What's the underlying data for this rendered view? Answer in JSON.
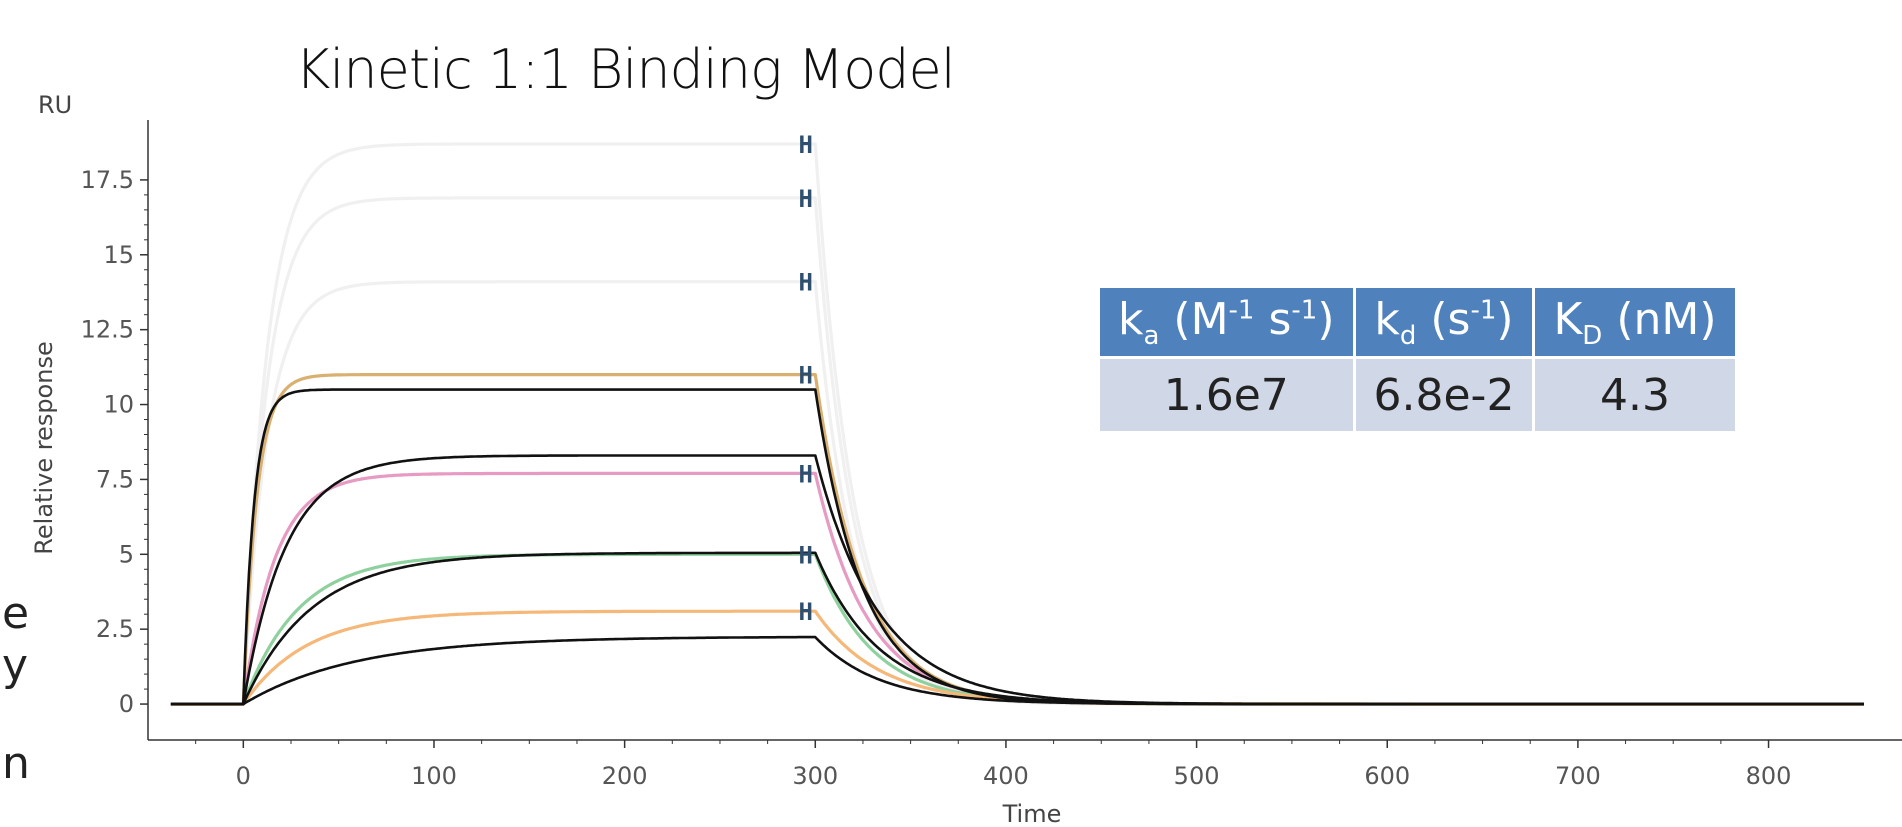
{
  "chart_data": {
    "type": "line",
    "title": "Kinetic 1:1 Binding Model",
    "xlabel": "Time",
    "ylabel": "Relative response",
    "yunit": "RU",
    "xlim": [
      -50,
      870
    ],
    "ylim": [
      -1.2,
      19.5
    ],
    "xticks": [
      "0",
      "100",
      "200",
      "300",
      "400",
      "500",
      "600",
      "700",
      "800"
    ],
    "yticks": [
      "0",
      "2.5",
      "5",
      "7.5",
      "10",
      "12.5",
      "15",
      "17.5"
    ],
    "grid": false,
    "injection_start": 0,
    "injection_end": 300,
    "marker_time": 295,
    "marker_label": "H",
    "series": [
      {
        "role": "measured",
        "color": "#f0f0f0",
        "plateau": 18.7,
        "ka": 0.08,
        "kd": 0.05
      },
      {
        "role": "measured",
        "color": "#f0f0f0",
        "plateau": 16.9,
        "ka": 0.08,
        "kd": 0.05
      },
      {
        "role": "measured",
        "color": "#f0f0f0",
        "plateau": 14.1,
        "ka": 0.08,
        "kd": 0.05
      },
      {
        "role": "measured",
        "color": "#d9b070",
        "plateau": 11.0,
        "ka": 0.14,
        "kd": 0.04
      },
      {
        "role": "fit",
        "color": "#111111",
        "plateau": 10.5,
        "ka": 0.18,
        "kd": 0.04
      },
      {
        "role": "measured",
        "color": "#e79ac2",
        "plateau": 7.7,
        "ka": 0.06,
        "kd": 0.036
      },
      {
        "role": "fit",
        "color": "#111111",
        "plateau": 8.3,
        "ka": 0.045,
        "kd": 0.03
      },
      {
        "role": "measured",
        "color": "#8fd19e",
        "plateau": 5.0,
        "ka": 0.035,
        "kd": 0.034
      },
      {
        "role": "fit",
        "color": "#111111",
        "plateau": 5.05,
        "ka": 0.028,
        "kd": 0.03
      },
      {
        "role": "measured",
        "color": "#f5b878",
        "plateau": 3.1,
        "ka": 0.03,
        "kd": 0.03
      },
      {
        "role": "fit",
        "color": "#111111",
        "plateau": 2.25,
        "ka": 0.017,
        "kd": 0.03
      }
    ]
  },
  "table": {
    "headers": [
      {
        "main": "k",
        "sub": "a",
        "unit_pre": " (M",
        "sup1": "-1",
        "mid": " s",
        "sup2": "-1",
        "post": ")"
      },
      {
        "main": "k",
        "sub": "d",
        "unit_pre": " (s",
        "sup1": "-1",
        "mid": "",
        "sup2": "",
        "post": ")"
      },
      {
        "main": "K",
        "sub": "D",
        "unit_pre": " (nM)",
        "sup1": "",
        "mid": "",
        "sup2": "",
        "post": ""
      }
    ],
    "values": [
      "1.6e7",
      "6.8e-2",
      "4.3"
    ]
  },
  "edge_glyphs": [
    "e",
    "y",
    "n"
  ]
}
